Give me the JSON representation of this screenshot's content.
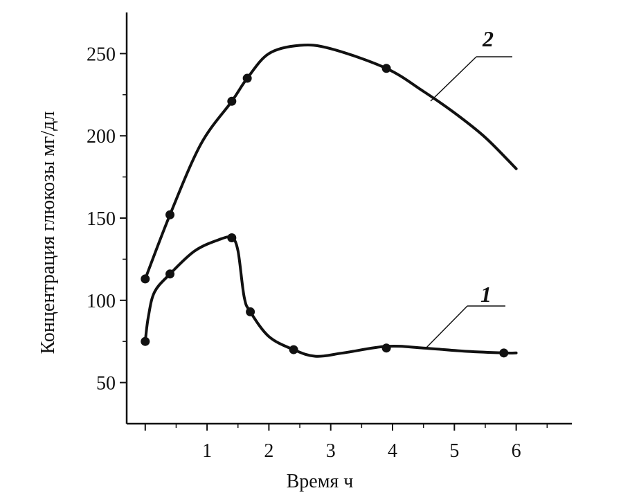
{
  "chart_data": {
    "type": "line",
    "title": "",
    "xlabel": "Время  ч",
    "ylabel": "Концентрация глюкозы  мг/дл",
    "xlim": [
      -0.3,
      6.9
    ],
    "ylim": [
      25,
      275
    ],
    "xticks": [
      0,
      1,
      2,
      3,
      4,
      5,
      6
    ],
    "xtick_labels": [
      "",
      "1",
      "2",
      "3",
      "4",
      "5",
      "6"
    ],
    "yticks": [
      50,
      100,
      150,
      200,
      250
    ],
    "ytick_labels": [
      "50",
      "100",
      "150",
      "200",
      "250"
    ],
    "grid": false,
    "series": [
      {
        "name": "1",
        "points_x": [
          0,
          0.4,
          1.4,
          1.7,
          2.4,
          3.9,
          5.8
        ],
        "points_y": [
          75,
          116,
          138,
          93,
          70,
          71,
          68
        ],
        "curve_x": [
          0,
          0.05,
          0.15,
          0.4,
          0.8,
          1.2,
          1.4,
          1.5,
          1.6,
          1.7,
          2.0,
          2.4,
          2.75,
          3.2,
          3.9,
          4.5,
          5.2,
          5.8,
          6.0
        ],
        "curve_y": [
          75,
          90,
          105,
          116,
          130,
          137,
          138,
          130,
          102,
          93,
          78,
          70,
          66,
          68,
          72,
          71,
          69,
          68,
          68
        ]
      },
      {
        "name": "2",
        "points_x": [
          0,
          0.4,
          1.4,
          1.65,
          3.9
        ],
        "points_y": [
          113,
          152,
          221,
          235,
          241
        ],
        "curve_x": [
          0,
          0.4,
          0.9,
          1.4,
          1.65,
          2.0,
          2.5,
          3.0,
          3.9,
          4.5,
          5.0,
          5.5,
          6.0
        ],
        "curve_y": [
          113,
          152,
          195,
          221,
          235,
          250,
          255,
          253,
          241,
          227,
          214,
          199,
          180
        ]
      }
    ]
  }
}
